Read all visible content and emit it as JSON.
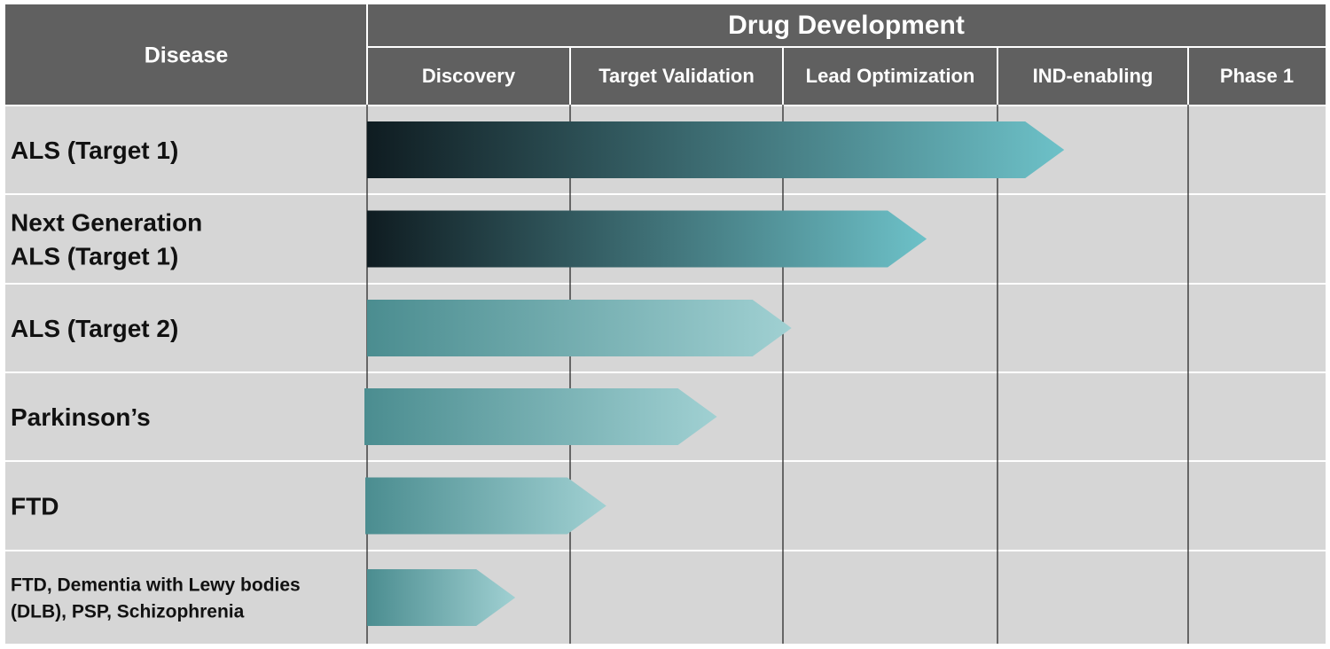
{
  "header": {
    "disease_label": "Disease",
    "group_label": "Drug Development",
    "stages": [
      "Discovery",
      "Target Validation",
      "Lead Optimization",
      "IND-enabling",
      "Phase 1"
    ]
  },
  "rows": [
    {
      "lines": [
        "ALS (Target 1)"
      ],
      "progress": 3.35,
      "style": "dark"
    },
    {
      "lines": [
        "Next Generation",
        "ALS (Target 1)"
      ],
      "progress": 2.67,
      "style": "dark"
    },
    {
      "lines": [
        "ALS (Target 2)"
      ],
      "progress": 2.04,
      "style": "light"
    },
    {
      "lines": [
        "Parkinson’s"
      ],
      "progress": 1.69,
      "style": "light"
    },
    {
      "lines": [
        "FTD"
      ],
      "progress": 1.17,
      "style": "light"
    },
    {
      "lines": [
        "FTD, Dementia with Lewy bodies",
        "(DLB), PSP, Schizophrenia"
      ],
      "progress": 0.73,
      "style": "light"
    }
  ],
  "colors": {
    "header_bg": "#606060",
    "grid_bg": "#d6d6d6",
    "row_separator": "#ffffff",
    "column_line": "#2a2a2a",
    "dark_arrow_start": "#0f1c21",
    "dark_arrow_end": "#6dc1c8",
    "light_arrow_start": "#4b8d90",
    "light_arrow_end": "#a0d0d2"
  }
}
